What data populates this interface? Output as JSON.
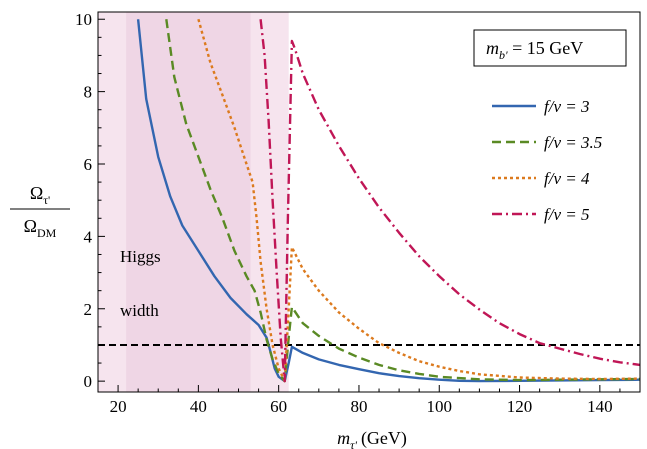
{
  "chart_data": {
    "type": "line",
    "title": "",
    "xlabel": {
      "main": "m",
      "sub": "τ'",
      "unit": "(GeV)"
    },
    "ylabel": {
      "num_main": "Ω",
      "num_sub": "τ'",
      "den_main": "Ω",
      "den_sub": "DM"
    },
    "xlim": [
      15,
      150
    ],
    "ylim": [
      -0.3,
      10.2
    ],
    "xticks": [
      20,
      40,
      60,
      80,
      100,
      120,
      140
    ],
    "yticks": [
      0,
      2,
      4,
      6,
      8,
      10
    ],
    "box_label": {
      "main": "m",
      "sub": "b'",
      "rest": " = 15 GeV"
    },
    "annotation_lines": [
      "Higgs",
      "width"
    ],
    "bands": [
      {
        "x0": 15,
        "x1": 62.5,
        "color": "#f6e4ee"
      },
      {
        "x0": 22,
        "x1": 53,
        "color": "#efd6e5"
      }
    ],
    "reference_line": {
      "y": 1,
      "style": "dashed",
      "color": "#000000"
    },
    "legend": [
      {
        "label": "f/v = 3",
        "color": "#3366b0",
        "dash": ""
      },
      {
        "label": "f/v = 3.5",
        "color": "#5a8a24",
        "dash": "9 5"
      },
      {
        "label": "f/v = 4",
        "color": "#dc7a1e",
        "dash": "3 3"
      },
      {
        "label": "f/v = 5",
        "color": "#c01656",
        "dash": "10 4 2 4"
      }
    ],
    "series": [
      {
        "name": "f/v = 3",
        "color": "#3366b0",
        "dash": "",
        "points": [
          [
            25,
            10
          ],
          [
            27,
            7.8
          ],
          [
            30,
            6.2
          ],
          [
            33,
            5.1
          ],
          [
            36,
            4.3
          ],
          [
            40,
            3.6
          ],
          [
            44,
            2.9
          ],
          [
            48,
            2.3
          ],
          [
            52,
            1.85
          ],
          [
            55,
            1.55
          ],
          [
            57,
            1.2
          ],
          [
            58,
            0.8
          ],
          [
            59,
            0.35
          ],
          [
            60,
            0.12
          ],
          [
            61.5,
            0
          ],
          [
            62.5,
            0.5
          ],
          [
            63.3,
            0.95
          ],
          [
            66,
            0.78
          ],
          [
            70,
            0.6
          ],
          [
            75,
            0.45
          ],
          [
            80,
            0.33
          ],
          [
            85,
            0.22
          ],
          [
            90,
            0.14
          ],
          [
            95,
            0.08
          ],
          [
            100,
            0.04
          ],
          [
            105,
            0.01
          ],
          [
            110,
            0
          ],
          [
            120,
            0.01
          ],
          [
            130,
            0.02
          ],
          [
            140,
            0.03
          ],
          [
            150,
            0.04
          ]
        ]
      },
      {
        "name": "f/v = 3.5",
        "color": "#5a8a24",
        "dash": "9 5",
        "points": [
          [
            32,
            10
          ],
          [
            34,
            8.4
          ],
          [
            37,
            7.1
          ],
          [
            40,
            6.2
          ],
          [
            43,
            5.3
          ],
          [
            46,
            4.5
          ],
          [
            49,
            3.6
          ],
          [
            52,
            2.9
          ],
          [
            54,
            2.5
          ],
          [
            55.5,
            1.9
          ],
          [
            57,
            1.15
          ],
          [
            58.5,
            0.6
          ],
          [
            60,
            0.2
          ],
          [
            61.5,
            0
          ],
          [
            62.5,
            1.2
          ],
          [
            63.3,
            2.05
          ],
          [
            66,
            1.6
          ],
          [
            70,
            1.25
          ],
          [
            75,
            0.9
          ],
          [
            80,
            0.65
          ],
          [
            85,
            0.45
          ],
          [
            90,
            0.3
          ],
          [
            95,
            0.2
          ],
          [
            100,
            0.12
          ],
          [
            110,
            0.05
          ],
          [
            120,
            0.03
          ],
          [
            130,
            0.04
          ],
          [
            140,
            0.05
          ],
          [
            150,
            0.06
          ]
        ]
      },
      {
        "name": "f/v = 4",
        "color": "#dc7a1e",
        "dash": "3 3",
        "points": [
          [
            40,
            10
          ],
          [
            43,
            8.8
          ],
          [
            46,
            7.9
          ],
          [
            49,
            7
          ],
          [
            52,
            6
          ],
          [
            53.5,
            5.5
          ],
          [
            54.5,
            4.5
          ],
          [
            55.5,
            3.3
          ],
          [
            57,
            2
          ],
          [
            58.5,
            1
          ],
          [
            60,
            0.35
          ],
          [
            61.5,
            0
          ],
          [
            62.5,
            2
          ],
          [
            63.3,
            3.7
          ],
          [
            66,
            3.1
          ],
          [
            70,
            2.5
          ],
          [
            75,
            1.9
          ],
          [
            80,
            1.45
          ],
          [
            85,
            1.05
          ],
          [
            90,
            0.78
          ],
          [
            95,
            0.55
          ],
          [
            100,
            0.4
          ],
          [
            105,
            0.28
          ],
          [
            110,
            0.19
          ],
          [
            120,
            0.1
          ],
          [
            130,
            0.07
          ],
          [
            140,
            0.06
          ],
          [
            150,
            0.07
          ]
        ]
      },
      {
        "name": "f/v = 5",
        "color": "#c01656",
        "dash": "10 4 2 4",
        "points": [
          [
            55.5,
            10
          ],
          [
            56.5,
            9
          ],
          [
            57.5,
            7.2
          ],
          [
            58.5,
            5
          ],
          [
            59.5,
            3
          ],
          [
            60.5,
            1.2
          ],
          [
            61.5,
            0
          ],
          [
            62.3,
            4.5
          ],
          [
            63.3,
            9.4
          ],
          [
            64,
            9.2
          ],
          [
            66,
            8.5
          ],
          [
            70,
            7.5
          ],
          [
            75,
            6.5
          ],
          [
            80,
            5.6
          ],
          [
            85,
            4.8
          ],
          [
            90,
            4.1
          ],
          [
            95,
            3.45
          ],
          [
            100,
            2.9
          ],
          [
            105,
            2.4
          ],
          [
            110,
            1.98
          ],
          [
            115,
            1.6
          ],
          [
            120,
            1.3
          ],
          [
            125,
            1.05
          ],
          [
            130,
            0.9
          ],
          [
            135,
            0.75
          ],
          [
            140,
            0.62
          ],
          [
            145,
            0.52
          ],
          [
            150,
            0.45
          ]
        ]
      }
    ]
  }
}
